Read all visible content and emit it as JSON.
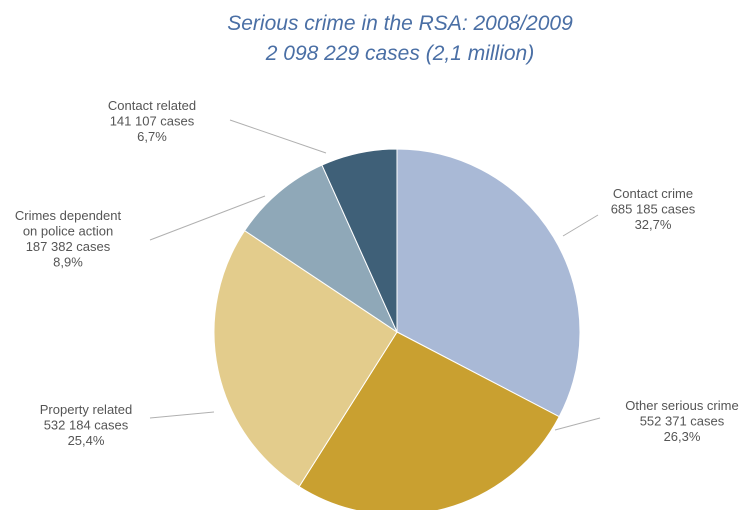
{
  "chart_data": {
    "type": "pie",
    "title": "Serious crime in the RSA: 2008/2009",
    "subtitle": "2 098 229 cases (2,1 million)",
    "total_cases": 2098229,
    "slices": [
      {
        "name": "Contact crime",
        "cases": 685185,
        "percent": 32.7,
        "label_lines": [
          "Contact crime",
          "685 185 cases",
          "32,7%"
        ],
        "color": "#a9b9d6"
      },
      {
        "name": "Other serious crime",
        "cases": 552371,
        "percent": 26.3,
        "label_lines": [
          "Other serious crime",
          "552 371 cases",
          "26,3%"
        ],
        "color": "#c9a030"
      },
      {
        "name": "Property related",
        "cases": 532184,
        "percent": 25.4,
        "label_lines": [
          "Property related",
          "532 184 cases",
          "25,4%"
        ],
        "color": "#e3cc8c"
      },
      {
        "name": "Crimes dependent on police action",
        "cases": 187382,
        "percent": 8.9,
        "label_lines": [
          "Crimes dependent",
          "on police action",
          "187 382 cases",
          "8,9%"
        ],
        "color": "#8fa8b8"
      },
      {
        "name": "Contact related",
        "cases": 141107,
        "percent": 6.7,
        "label_lines": [
          "Contact related",
          "141 107 cases",
          "6,7%"
        ],
        "color": "#3f6078"
      }
    ]
  }
}
